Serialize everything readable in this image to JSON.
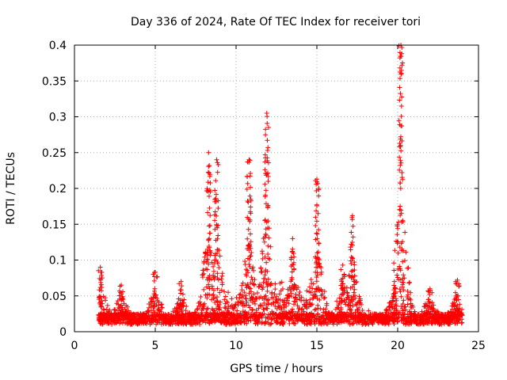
{
  "chart_data": {
    "type": "scatter",
    "title": "Day 336 of 2024, Rate Of TEC Index for receiver tori",
    "xlabel": "GPS time / hours",
    "ylabel": "ROTI / TECUs",
    "xlim": [
      0,
      25
    ],
    "ylim": [
      0,
      0.4
    ],
    "x_ticks": [
      0,
      5,
      10,
      15,
      20,
      25
    ],
    "x_tick_labels": [
      "0",
      "5",
      "10",
      "15",
      "20",
      "25"
    ],
    "y_ticks": [
      0,
      0.05,
      0.1,
      0.15,
      0.2,
      0.25,
      0.3,
      0.35,
      0.4
    ],
    "y_tick_labels": [
      "0",
      "0.05",
      "0.1",
      "0.15",
      "0.2",
      "0.25",
      "0.3",
      "0.35",
      "0.4"
    ],
    "grid": true,
    "marker": "+",
    "series": [
      {
        "name": "ROTI",
        "color": "#ff0000",
        "x_start": 1.5,
        "x_end": 24.0,
        "baseline_range": [
          0.01,
          0.025
        ],
        "noted_peaks": [
          {
            "x": 1.6,
            "y": 0.09
          },
          {
            "x": 2.9,
            "y": 0.065
          },
          {
            "x": 5.0,
            "y": 0.083
          },
          {
            "x": 6.6,
            "y": 0.07
          },
          {
            "x": 8.3,
            "y": 0.25
          },
          {
            "x": 8.8,
            "y": 0.24
          },
          {
            "x": 10.8,
            "y": 0.24
          },
          {
            "x": 11.9,
            "y": 0.305
          },
          {
            "x": 13.5,
            "y": 0.13
          },
          {
            "x": 15.0,
            "y": 0.213
          },
          {
            "x": 16.6,
            "y": 0.093
          },
          {
            "x": 17.2,
            "y": 0.162
          },
          {
            "x": 19.8,
            "y": 0.07
          },
          {
            "x": 20.2,
            "y": 0.4
          },
          {
            "x": 22.0,
            "y": 0.06
          },
          {
            "x": 23.7,
            "y": 0.072
          }
        ]
      }
    ]
  }
}
